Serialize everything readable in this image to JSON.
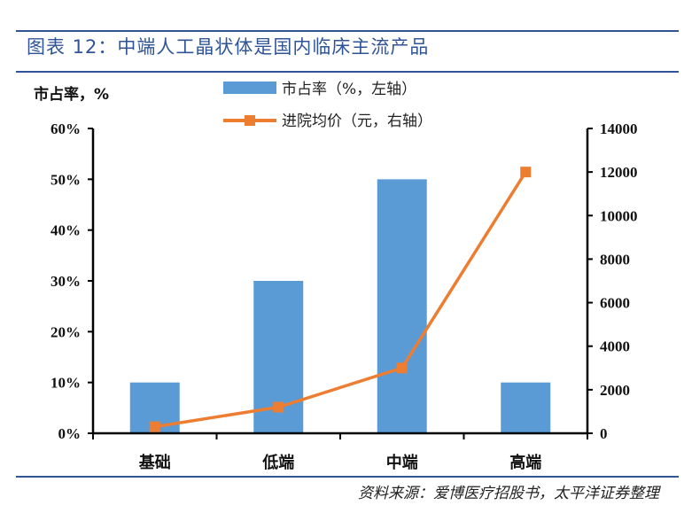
{
  "title": "图表 12：中端人工晶状体是国内临床主流产品",
  "source": "资料来源：爱博医疗招股书，太平洋证券整理",
  "colors": {
    "bar": "#5b9bd5",
    "line": "#ed7d31",
    "rule": "#2f5597"
  },
  "chart_data": {
    "type": "bar+line",
    "title": "",
    "categories": [
      "基础",
      "低端",
      "中端",
      "高端"
    ],
    "left_axis": {
      "label": "市占率，%",
      "range": [
        0,
        60
      ],
      "ticks": [
        "0%",
        "10%",
        "20%",
        "30%",
        "40%",
        "50%",
        "60%"
      ]
    },
    "right_axis": {
      "label": "",
      "range": [
        0,
        14000
      ],
      "ticks": [
        "0",
        "2000",
        "4000",
        "6000",
        "8000",
        "10000",
        "12000",
        "14000"
      ]
    },
    "series": [
      {
        "name": "市占率（%，左轴）",
        "type": "bar",
        "axis": "left",
        "values": [
          10,
          30,
          50,
          10
        ]
      },
      {
        "name": "进院均价（元，右轴）",
        "type": "line",
        "axis": "right",
        "marker": "square",
        "values": [
          300,
          1200,
          3000,
          12000
        ]
      }
    ],
    "grid": false,
    "legend": "top-center"
  }
}
